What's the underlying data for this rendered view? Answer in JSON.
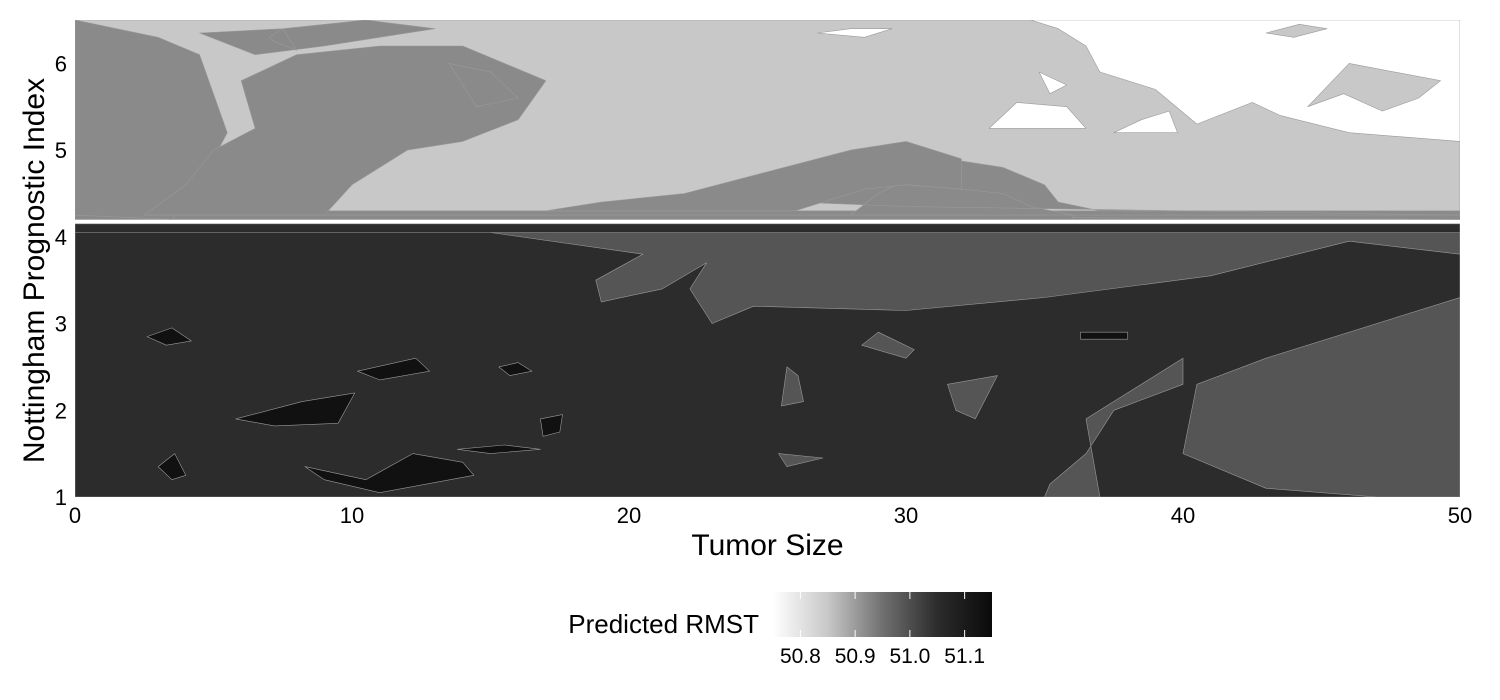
{
  "chart_data": {
    "type": "heatmap",
    "title": "",
    "xlabel": "Tumor Size",
    "ylabel": "Nottingham Prognostic Index",
    "xlim": [
      0,
      50
    ],
    "ylim": [
      1,
      6.5
    ],
    "x_ticks": [
      "0",
      "10",
      "20",
      "30",
      "40",
      "50"
    ],
    "x_tick_values": [
      0,
      10,
      20,
      30,
      40,
      50
    ],
    "y_ticks": [
      "1",
      "2",
      "3",
      "4",
      "5",
      "6"
    ],
    "y_tick_values": [
      1,
      2,
      3,
      4,
      5,
      6
    ],
    "grid": false,
    "colorscale": "greyscale, white = low, black = high",
    "levels": [
      {
        "range": [
          50.75,
          50.8
        ],
        "color": "#ffffff"
      },
      {
        "range": [
          50.8,
          50.9
        ],
        "color": "#c8c8c8"
      },
      {
        "range": [
          50.9,
          50.95
        ],
        "color": "#8a8a8a"
      },
      {
        "range": [
          50.95,
          51.0
        ],
        "color": "#555555"
      },
      {
        "range": [
          51.0,
          51.05
        ],
        "color": "#2c2c2c"
      },
      {
        "range": [
          51.05,
          51.15
        ],
        "color": "#111111"
      }
    ],
    "regions": [
      {
        "level": 1,
        "polygon": [
          [
            0,
            4.25
          ],
          [
            50,
            4.25
          ],
          [
            50,
            6.5
          ],
          [
            0,
            6.5
          ]
        ]
      },
      {
        "level": 4,
        "polygon": [
          [
            0,
            1
          ],
          [
            50,
            1
          ],
          [
            50,
            4.15
          ],
          [
            0,
            4.15
          ]
        ]
      },
      {
        "level": 3,
        "polygon": [
          [
            0,
            4.05
          ],
          [
            50,
            4.05
          ],
          [
            50,
            3.8
          ],
          [
            46,
            3.95
          ],
          [
            41,
            3.55
          ],
          [
            35,
            3.3
          ],
          [
            30,
            3.15
          ],
          [
            24.5,
            3.2
          ],
          [
            23,
            3.0
          ],
          [
            22.2,
            3.4
          ],
          [
            22.8,
            3.7
          ],
          [
            21.2,
            3.4
          ],
          [
            19,
            3.25
          ],
          [
            18.8,
            3.5
          ],
          [
            20.5,
            3.8
          ],
          [
            15,
            4.05
          ],
          [
            5,
            4.05
          ]
        ]
      },
      {
        "level": 3,
        "polygon": [
          [
            35,
            1
          ],
          [
            37,
            1
          ],
          [
            36.5,
            1.9
          ],
          [
            38,
            2.2
          ],
          [
            40,
            2.6
          ],
          [
            40,
            2.3
          ],
          [
            37.5,
            2.0
          ],
          [
            36.5,
            1.5
          ],
          [
            35.2,
            1.15
          ]
        ]
      },
      {
        "level": 3,
        "polygon": [
          [
            50,
            1
          ],
          [
            50,
            3.3
          ],
          [
            43,
            2.6
          ],
          [
            40.5,
            2.3
          ],
          [
            40,
            1.5
          ],
          [
            43,
            1.1
          ],
          [
            47,
            1.0
          ]
        ]
      },
      {
        "level": 3,
        "polygon": [
          [
            29,
            2.9
          ],
          [
            30.3,
            2.7
          ],
          [
            30,
            2.6
          ],
          [
            28.4,
            2.75
          ]
        ]
      },
      {
        "level": 3,
        "polygon": [
          [
            25.7,
            2.5
          ],
          [
            26.1,
            2.4
          ],
          [
            26.3,
            2.1
          ],
          [
            25.5,
            2.05
          ]
        ]
      },
      {
        "level": 3,
        "polygon": [
          [
            25.4,
            1.5
          ],
          [
            27,
            1.45
          ],
          [
            25.7,
            1.35
          ]
        ]
      },
      {
        "level": 3,
        "polygon": [
          [
            31.5,
            2.3
          ],
          [
            33.3,
            2.4
          ],
          [
            32.5,
            1.9
          ],
          [
            31.8,
            2.0
          ]
        ]
      },
      {
        "level": 5,
        "polygon": [
          [
            2.6,
            2.85
          ],
          [
            3.5,
            2.95
          ],
          [
            4.2,
            2.8
          ],
          [
            3.3,
            2.75
          ]
        ]
      },
      {
        "level": 5,
        "polygon": [
          [
            5.8,
            1.9
          ],
          [
            8.2,
            2.1
          ],
          [
            10.1,
            2.2
          ],
          [
            9.5,
            1.85
          ],
          [
            7.2,
            1.82
          ]
        ]
      },
      {
        "level": 5,
        "polygon": [
          [
            10.2,
            2.45
          ],
          [
            12.3,
            2.6
          ],
          [
            12.8,
            2.45
          ],
          [
            11.0,
            2.35
          ]
        ]
      },
      {
        "level": 5,
        "polygon": [
          [
            8.3,
            1.35
          ],
          [
            10.5,
            1.2
          ],
          [
            12.2,
            1.5
          ],
          [
            14.0,
            1.4
          ],
          [
            14.4,
            1.25
          ],
          [
            11.0,
            1.05
          ],
          [
            9.0,
            1.2
          ]
        ]
      },
      {
        "level": 5,
        "polygon": [
          [
            3.0,
            1.35
          ],
          [
            3.6,
            1.5
          ],
          [
            4.0,
            1.25
          ],
          [
            3.5,
            1.2
          ]
        ]
      },
      {
        "level": 5,
        "polygon": [
          [
            15.3,
            2.5
          ],
          [
            16.0,
            2.55
          ],
          [
            16.5,
            2.45
          ],
          [
            15.7,
            2.4
          ]
        ]
      },
      {
        "level": 5,
        "polygon": [
          [
            16.8,
            1.9
          ],
          [
            17.6,
            1.95
          ],
          [
            17.5,
            1.75
          ],
          [
            16.9,
            1.7
          ]
        ]
      },
      {
        "level": 5,
        "polygon": [
          [
            13.8,
            1.55
          ],
          [
            15.5,
            1.6
          ],
          [
            16.8,
            1.55
          ],
          [
            15.0,
            1.5
          ]
        ]
      },
      {
        "level": 5,
        "polygon": [
          [
            36.3,
            2.9
          ],
          [
            38.0,
            2.9
          ],
          [
            38.0,
            2.82
          ],
          [
            36.3,
            2.82
          ]
        ]
      },
      {
        "level": 2,
        "polygon": [
          [
            0,
            4.2
          ],
          [
            50,
            4.2
          ],
          [
            50,
            4.3
          ],
          [
            0,
            4.3
          ]
        ]
      },
      {
        "level": 2,
        "polygon": [
          [
            0,
            4.25
          ],
          [
            25.5,
            4.25
          ],
          [
            28,
            4.25
          ],
          [
            29,
            4.5
          ],
          [
            31.5,
            4.9
          ],
          [
            33.5,
            4.8
          ],
          [
            35,
            4.6
          ],
          [
            35.5,
            4.4
          ],
          [
            37,
            4.3
          ],
          [
            50,
            4.3
          ],
          [
            50,
            4.25
          ],
          [
            40,
            4.3
          ],
          [
            30,
            4.35
          ],
          [
            26,
            4.4
          ],
          [
            28.5,
            4.7
          ],
          [
            30,
            4.6
          ],
          [
            32,
            4.55
          ],
          [
            33.5,
            4.5
          ],
          [
            34.5,
            4.35
          ],
          [
            36,
            4.25
          ]
        ]
      },
      {
        "level": 2,
        "polygon": [
          [
            0,
            4.25
          ],
          [
            0,
            6.5
          ],
          [
            3,
            6.3
          ],
          [
            4.5,
            6.1
          ],
          [
            5.5,
            5.2
          ],
          [
            4.5,
            4.6
          ],
          [
            3.5,
            4.2
          ]
        ]
      },
      {
        "level": 2,
        "polygon": [
          [
            2.5,
            4.25
          ],
          [
            9,
            4.25
          ],
          [
            10,
            4.6
          ],
          [
            12,
            5.0
          ],
          [
            14,
            5.1
          ],
          [
            16,
            5.35
          ],
          [
            17,
            5.8
          ],
          [
            14,
            6.2
          ],
          [
            11,
            6.2
          ],
          [
            8,
            6.1
          ],
          [
            6,
            5.8
          ],
          [
            6.5,
            5.25
          ],
          [
            5,
            5.0
          ],
          [
            4,
            4.6
          ]
        ]
      },
      {
        "level": 2,
        "polygon": [
          [
            4.5,
            6.35
          ],
          [
            7.5,
            6.4
          ],
          [
            10.5,
            6.5
          ],
          [
            13,
            6.4
          ],
          [
            11,
            6.3
          ],
          [
            9,
            6.2
          ],
          [
            6.5,
            6.1
          ]
        ]
      },
      {
        "level": 2,
        "polygon": [
          [
            17,
            4.3
          ],
          [
            26,
            4.3
          ],
          [
            28.5,
            4.55
          ],
          [
            30,
            4.6
          ],
          [
            32,
            4.55
          ],
          [
            32,
            4.9
          ],
          [
            30,
            5.1
          ],
          [
            28,
            5.0
          ],
          [
            25,
            4.75
          ],
          [
            22,
            4.5
          ],
          [
            19,
            4.4
          ]
        ]
      },
      {
        "level": 2,
        "polygon": [
          [
            7,
            6.3
          ],
          [
            7.5,
            6.4
          ],
          [
            8,
            6.15
          ],
          [
            7.2,
            6.25
          ]
        ]
      },
      {
        "level": 2,
        "polygon": [
          [
            13.5,
            6.0
          ],
          [
            14.5,
            5.5
          ],
          [
            16,
            5.6
          ],
          [
            15,
            5.9
          ]
        ]
      },
      {
        "level": 2,
        "polygon": [
          [
            36,
            4.25
          ],
          [
            50,
            4.25
          ],
          [
            50,
            4.2
          ],
          [
            36,
            4.22
          ]
        ]
      },
      {
        "level": 0,
        "polygon": [
          [
            34.5,
            6.5
          ],
          [
            50,
            6.5
          ],
          [
            50,
            5.1
          ],
          [
            46,
            5.2
          ],
          [
            43.5,
            5.4
          ],
          [
            42.5,
            5.55
          ],
          [
            40.5,
            5.3
          ],
          [
            39,
            5.7
          ],
          [
            37,
            5.9
          ],
          [
            36.5,
            6.2
          ],
          [
            35.5,
            6.4
          ]
        ]
      },
      {
        "level": 0,
        "polygon": [
          [
            33,
            5.25
          ],
          [
            36.5,
            5.25
          ],
          [
            35.8,
            5.5
          ],
          [
            34,
            5.55
          ]
        ]
      },
      {
        "level": 0,
        "polygon": [
          [
            37.5,
            5.2
          ],
          [
            39.8,
            5.2
          ],
          [
            39.5,
            5.45
          ],
          [
            38.5,
            5.35
          ]
        ]
      },
      {
        "level": 0,
        "polygon": [
          [
            26.8,
            6.35
          ],
          [
            28.5,
            6.3
          ],
          [
            29.5,
            6.4
          ],
          [
            28,
            6.4
          ]
        ]
      },
      {
        "level": 0,
        "polygon": [
          [
            34.8,
            5.9
          ],
          [
            35.8,
            5.75
          ],
          [
            35.2,
            5.65
          ]
        ]
      },
      {
        "level": 1,
        "polygon": [
          [
            43,
            6.35
          ],
          [
            44,
            6.3
          ],
          [
            45.2,
            6.4
          ],
          [
            44.2,
            6.45
          ]
        ]
      },
      {
        "level": 1,
        "polygon": [
          [
            44.5,
            5.5
          ],
          [
            45.8,
            5.65
          ],
          [
            47.2,
            5.45
          ],
          [
            48.5,
            5.6
          ],
          [
            49.3,
            5.8
          ],
          [
            46,
            6.0
          ]
        ]
      }
    ]
  },
  "legend": {
    "title": "Predicted RMST",
    "ticks": [
      "50.8",
      "50.9",
      "51.0",
      "51.1"
    ],
    "tick_values": [
      50.8,
      50.9,
      51.0,
      51.1
    ],
    "range": [
      50.75,
      51.15
    ],
    "gradient_stops": [
      {
        "value": 50.75,
        "color": "#ffffff"
      },
      {
        "value": 50.85,
        "color": "#c8c8c8"
      },
      {
        "value": 50.95,
        "color": "#707070"
      },
      {
        "value": 51.05,
        "color": "#2c2c2c"
      },
      {
        "value": 51.15,
        "color": "#0a0a0a"
      }
    ]
  }
}
